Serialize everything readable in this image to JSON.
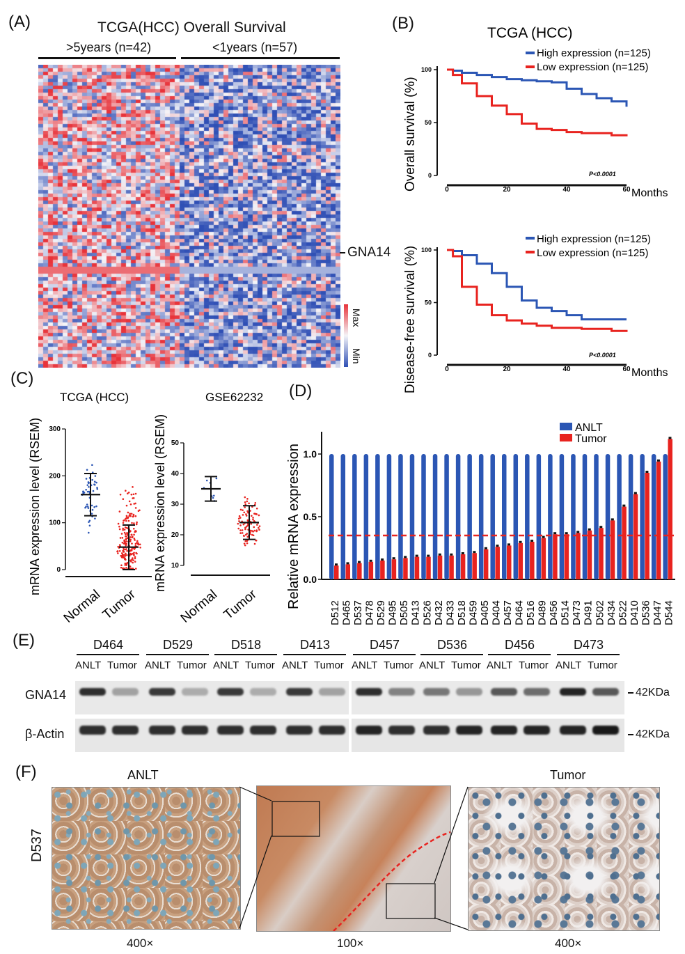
{
  "panels": {
    "a": "(A)",
    "b": "(B)",
    "c": "(C)",
    "d": "(D)",
    "e": "(E)",
    "f": "(F)"
  },
  "heatmap": {
    "title": "TCGA(HCC) Overall Survival",
    "group_left": ">5years (n=42)",
    "group_right": "<1years (n=57)",
    "gene_label": "GNA14",
    "scale_max": "Max",
    "scale_min": "Min",
    "colors": {
      "high": "#e8333a",
      "mid": "#f4f4f8",
      "low": "#2f4fb5"
    }
  },
  "survival": {
    "title": "TCGA (HCC)",
    "legend_high": "High expression (n=125)",
    "legend_low": "Low expression (n=125)",
    "colors": {
      "high": "#2b56b4",
      "low": "#e8231f"
    },
    "months_label": "Months",
    "os": {
      "ylabel": "Overall survival (%)",
      "p": "P<0.0001"
    },
    "dfs": {
      "ylabel": "Disease-free survival (%)",
      "p": "P<0.0001"
    }
  },
  "chart_data": [
    {
      "type": "line",
      "title": "TCGA (HCC)",
      "xlabel": "Months",
      "ylabel": "Overall survival (%)",
      "xlim": [
        0,
        60
      ],
      "ylim": [
        0,
        100
      ],
      "x_ticks": [
        "0",
        "20",
        "40",
        "60"
      ],
      "y_ticks": [
        "0",
        "50",
        "100"
      ],
      "annotation": "P<0.0001",
      "series": [
        {
          "name": "High expression (n=125)",
          "x": [
            0,
            2,
            5,
            10,
            15,
            20,
            25,
            30,
            35,
            40,
            45,
            50,
            55,
            60
          ],
          "y": [
            100,
            99,
            97,
            95,
            93,
            91,
            90,
            89,
            88,
            82,
            77,
            73,
            70,
            65
          ]
        },
        {
          "name": "Low expression (n=125)",
          "x": [
            0,
            2,
            5,
            10,
            15,
            20,
            25,
            30,
            35,
            40,
            45,
            50,
            55,
            60
          ],
          "y": [
            100,
            95,
            87,
            75,
            66,
            58,
            49,
            44,
            43,
            41,
            40,
            40,
            38,
            39
          ]
        }
      ]
    },
    {
      "type": "line",
      "title": "",
      "xlabel": "Months",
      "ylabel": "Disease-free survival (%)",
      "xlim": [
        0,
        60
      ],
      "ylim": [
        0,
        100
      ],
      "x_ticks": [
        "0",
        "20",
        "40",
        "60"
      ],
      "y_ticks": [
        "0",
        "50",
        "100"
      ],
      "annotation": "P<0.0001",
      "series": [
        {
          "name": "High expression (n=125)",
          "x": [
            0,
            2,
            5,
            10,
            15,
            20,
            25,
            30,
            35,
            40,
            45,
            50,
            55,
            60
          ],
          "y": [
            100,
            99,
            95,
            87,
            78,
            65,
            52,
            45,
            42,
            38,
            34,
            34,
            34,
            34
          ]
        },
        {
          "name": "Low expression (n=125)",
          "x": [
            0,
            2,
            5,
            10,
            15,
            20,
            25,
            30,
            35,
            40,
            45,
            50,
            55,
            60
          ],
          "y": [
            100,
            94,
            65,
            48,
            38,
            33,
            30,
            28,
            26,
            26,
            25,
            25,
            23,
            22
          ]
        }
      ]
    },
    {
      "type": "scatter",
      "title": "TCGA (HCC)",
      "ylabel": "mRNA expression level (RSEM)",
      "ylim": [
        0,
        300
      ],
      "y_ticks": [
        "0",
        "100",
        "200",
        "300"
      ],
      "categories": [
        "Normal",
        "Tumor"
      ],
      "mean": [
        160,
        48
      ],
      "sd_low": [
        115,
        0
      ],
      "sd_high": [
        205,
        95
      ]
    },
    {
      "type": "scatter",
      "title": "GSE62232",
      "ylabel": "mRNA expression level (RSEM)",
      "ylim": [
        10,
        50
      ],
      "y_ticks": [
        "10",
        "20",
        "30",
        "40",
        "50"
      ],
      "categories": [
        "Normal",
        "Tumor"
      ],
      "mean": [
        35,
        24
      ],
      "sd_low": [
        31,
        18.5
      ],
      "sd_high": [
        39,
        29.5
      ]
    },
    {
      "type": "bar",
      "title": "",
      "ylabel": "Relative mRNA expression",
      "ylim": [
        0,
        1.2
      ],
      "y_ticks": [
        "0.0",
        "0.5",
        "1.0"
      ],
      "threshold": 0.35,
      "categories": [
        "D512",
        "D465",
        "D537",
        "D478",
        "D529",
        "D495",
        "D505",
        "D413",
        "D526",
        "D432",
        "D433",
        "D518",
        "D459",
        "D405",
        "D404",
        "D457",
        "D464",
        "D516",
        "D489",
        "D456",
        "D514",
        "D473",
        "D491",
        "D502",
        "D434",
        "D522",
        "D410",
        "D536",
        "D447",
        "D544"
      ],
      "series": [
        {
          "name": "ANLT",
          "values": [
            1,
            1,
            1,
            1,
            1,
            1,
            1,
            1,
            1,
            1,
            1,
            1,
            1,
            1,
            1,
            1,
            1,
            1,
            1,
            1,
            1,
            1,
            1,
            1,
            1,
            1,
            1,
            1,
            1,
            1
          ]
        },
        {
          "name": "Tumor",
          "values": [
            0.11,
            0.12,
            0.13,
            0.14,
            0.15,
            0.16,
            0.17,
            0.18,
            0.18,
            0.19,
            0.19,
            0.2,
            0.21,
            0.24,
            0.26,
            0.27,
            0.29,
            0.3,
            0.33,
            0.36,
            0.36,
            0.37,
            0.39,
            0.41,
            0.47,
            0.58,
            0.68,
            0.85,
            0.94,
            1.12
          ]
        }
      ],
      "colors": {
        "ANLT": "#2b56b4",
        "Tumor": "#e8231f"
      }
    }
  ],
  "scatter": {
    "tcga_title": "TCGA (HCC)",
    "gse_title": "GSE62232",
    "ylabel": "mRNA expression level (RSEM)",
    "normal": "Normal",
    "tumor": "Tumor",
    "colors": {
      "normal": "#2b56b4",
      "tumor": "#e8231f"
    }
  },
  "bars": {
    "ylabel": "Relative mRNA expression",
    "legend_anlt": "ANLT",
    "legend_tumor": "Tumor"
  },
  "western": {
    "samples": [
      "D464",
      "D529",
      "D518",
      "D413",
      "D457",
      "D536",
      "D456",
      "D473"
    ],
    "lane_labels": [
      "ANLT",
      "Tumor"
    ],
    "rows": [
      {
        "name": "GNA14",
        "size": "42KDa",
        "intensity": [
          0.9,
          0.35,
          0.85,
          0.3,
          0.85,
          0.3,
          0.85,
          0.35,
          0.9,
          0.5,
          0.55,
          0.4,
          0.7,
          0.6,
          0.95,
          0.7
        ]
      },
      {
        "name": "β-Actin",
        "size": "42KDa",
        "intensity": [
          0.9,
          0.9,
          0.9,
          0.9,
          0.9,
          0.9,
          0.9,
          0.9,
          0.95,
          0.9,
          0.9,
          0.95,
          0.95,
          0.95,
          0.95,
          1.0
        ]
      }
    ]
  },
  "ihc": {
    "sample": "D537",
    "left_title": "ANLT",
    "right_title": "Tumor",
    "mag_left": "400×",
    "mag_mid": "100×",
    "mag_right": "400×"
  }
}
